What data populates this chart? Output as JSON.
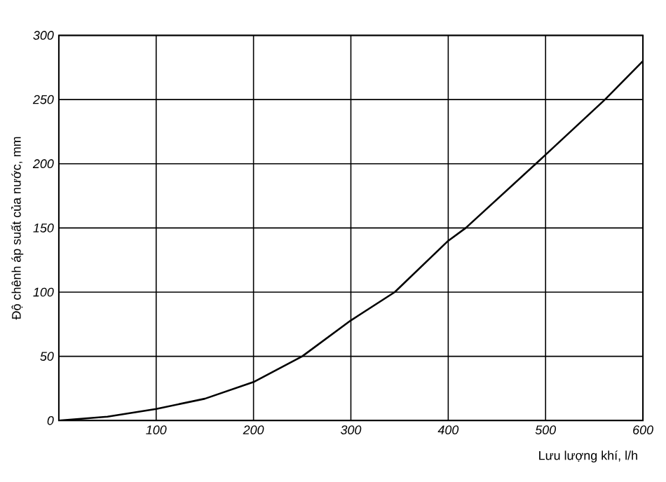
{
  "chart_data": {
    "type": "line",
    "xlabel": "Lưu lượng khí, l/h",
    "ylabel": "Độ chênh áp suất của nước, mm",
    "xlim": [
      0,
      600
    ],
    "ylim": [
      0,
      300
    ],
    "xticks": [
      {
        "value": 0,
        "label": null
      },
      100,
      200,
      300,
      400,
      500,
      600
    ],
    "yticks": [
      0,
      50,
      100,
      150,
      200,
      250,
      300
    ],
    "grid": true,
    "marker": "none",
    "line_style": "solid",
    "series": [
      {
        "color": "#000000",
        "x": [
          0,
          50,
          100,
          150,
          200,
          250,
          300,
          345,
          400,
          418,
          490,
          500,
          561,
          600
        ],
        "values": [
          0,
          3,
          9,
          17,
          30,
          50,
          78,
          100,
          140,
          150,
          200,
          207,
          250,
          280
        ]
      }
    ]
  }
}
